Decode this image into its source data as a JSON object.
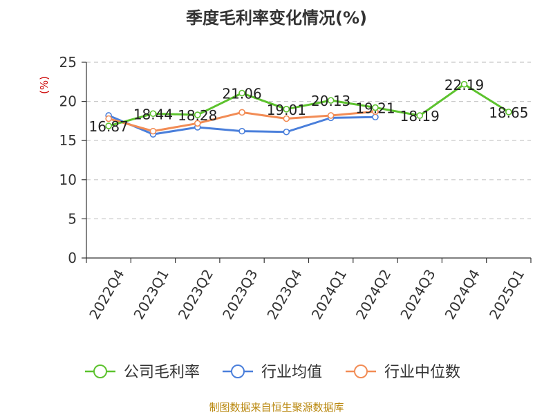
{
  "chart_data": {
    "type": "line",
    "title": "季度毛利率变化情况(%)",
    "ylabel": "(%)",
    "xlabel": "",
    "categories": [
      "2022Q4",
      "2023Q1",
      "2023Q2",
      "2023Q3",
      "2023Q4",
      "2024Q1",
      "2024Q2",
      "2024Q3",
      "2024Q4",
      "2025Q1"
    ],
    "ylim": [
      0,
      25
    ],
    "yticks": [
      0,
      5,
      10,
      15,
      20,
      25
    ],
    "grid": true,
    "legend_position": "bottom",
    "series": [
      {
        "name": "公司毛利率",
        "color": "#5cc22d",
        "values": [
          16.87,
          18.44,
          18.28,
          21.06,
          19.01,
          20.13,
          19.21,
          18.19,
          22.19,
          18.65
        ],
        "labels": [
          "16.87",
          "18.44",
          "18.28",
          "21.06",
          "19.01",
          "20.13",
          "19.21",
          "18.19",
          "22.19",
          "18.65"
        ]
      },
      {
        "name": "行业均值",
        "color": "#4a7fdb",
        "values": [
          18.2,
          15.8,
          16.7,
          16.2,
          16.1,
          17.9,
          18.0,
          null,
          null,
          null
        ]
      },
      {
        "name": "行业中位数",
        "color": "#f28c55",
        "values": [
          17.8,
          16.2,
          17.2,
          18.6,
          17.8,
          18.2,
          18.7,
          null,
          null,
          null
        ]
      }
    ]
  },
  "footer": "制图数据来自恒生聚源数据库"
}
